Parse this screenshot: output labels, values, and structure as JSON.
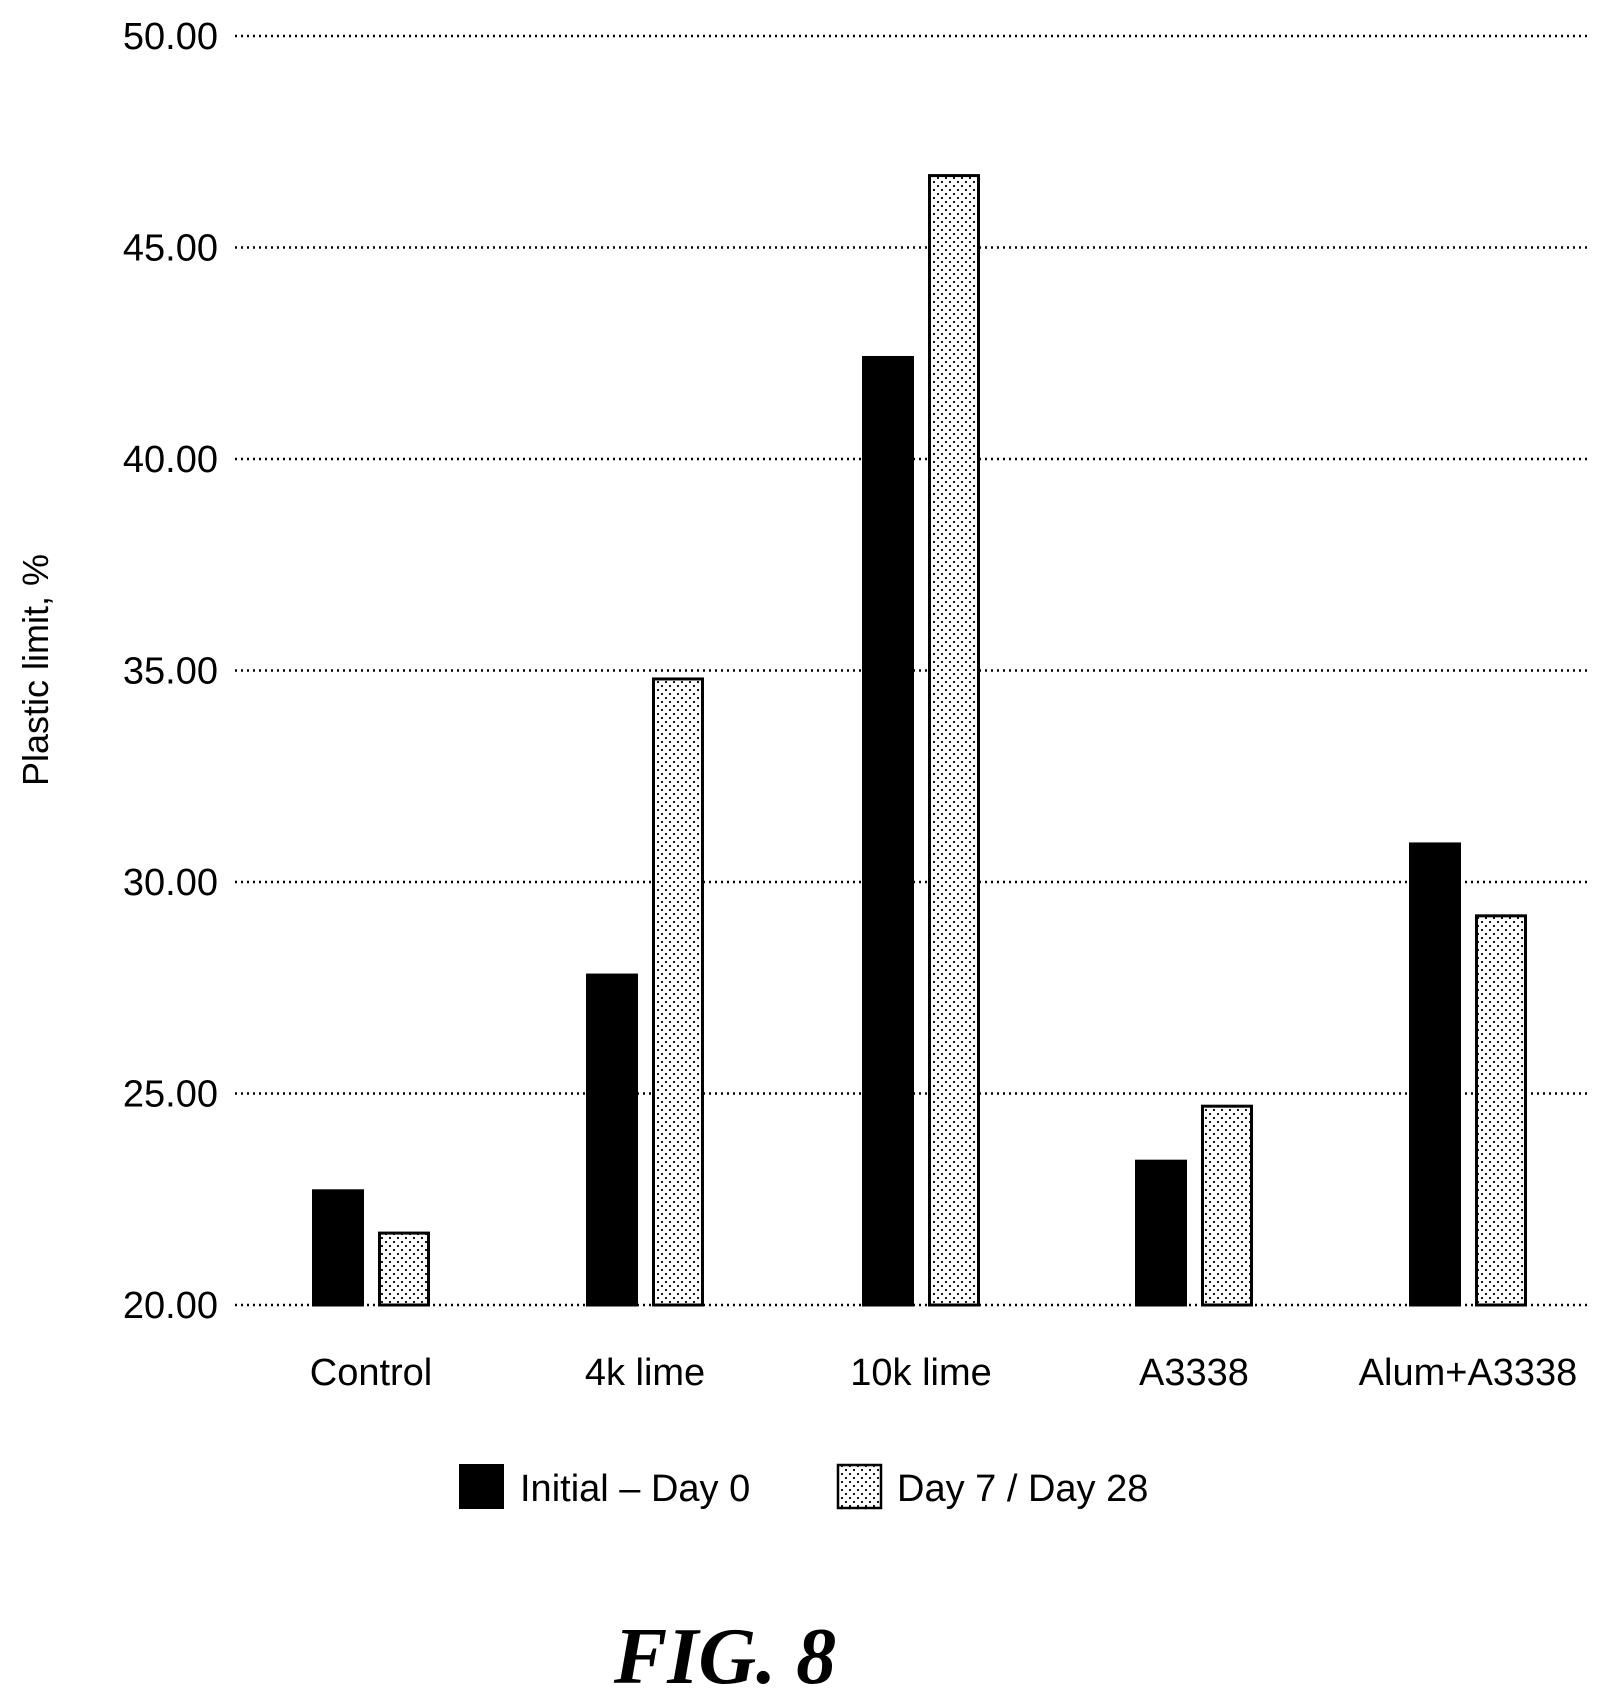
{
  "chart_data": {
    "type": "bar",
    "ylabel": "Plastic limit, %",
    "ylim": [
      20,
      50
    ],
    "yticks": [
      "20.00",
      "25.00",
      "30.00",
      "35.00",
      "40.00",
      "45.00",
      "50.00"
    ],
    "grid": "horizontal-dotted",
    "legend_position": "bottom",
    "categories": [
      "Control",
      "4k lime",
      "10k lime",
      "A3338",
      "Alum+A3338"
    ],
    "series": [
      {
        "name": "Initial – Day 0",
        "fill": "solid-black",
        "values": [
          22.7,
          27.8,
          42.4,
          23.4,
          30.9
        ]
      },
      {
        "name": "Day 7 / Day 28",
        "fill": "dotted-pattern",
        "values": [
          21.7,
          34.8,
          46.7,
          24.7,
          29.2
        ]
      }
    ]
  },
  "figure_label": "FIG. 8",
  "colors": {
    "ink": "#000000",
    "paper": "#ffffff"
  }
}
